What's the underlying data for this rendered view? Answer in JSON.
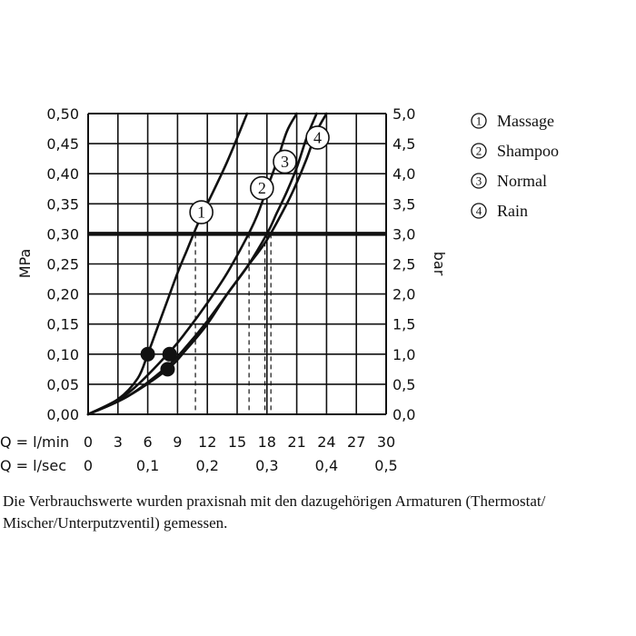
{
  "chart_data": {
    "type": "line",
    "y_left": {
      "label": "MPa",
      "range": [
        0,
        0.5
      ],
      "ticks": [
        "0,00",
        "0,05",
        "0,10",
        "0,15",
        "0,20",
        "0,25",
        "0,30",
        "0,35",
        "0,40",
        "0,45",
        "0,50"
      ]
    },
    "y_right": {
      "label": "bar",
      "range": [
        0,
        5
      ],
      "ticks": [
        "0,0",
        "0,5",
        "1,0",
        "1,5",
        "2,0",
        "2,5",
        "3,0",
        "3,5",
        "4,0",
        "4,5",
        "5,0"
      ]
    },
    "x_lmin": {
      "label": "Q = l/min",
      "range": [
        0,
        30
      ],
      "ticks": [
        0,
        3,
        6,
        9,
        12,
        15,
        18,
        21,
        24,
        27,
        30
      ]
    },
    "x_lsec": {
      "label": "Q = l/sec",
      "ticks": [
        "0",
        "0,1",
        "0,2",
        "0,3",
        "0,4",
        "0,5"
      ]
    },
    "grid": true,
    "reference_pressure": 0.3,
    "legend_position": "right",
    "series": [
      {
        "id": "1",
        "name": "Massage",
        "flow_at_ref": 10.8,
        "points": [
          [
            0,
            0
          ],
          [
            3,
            0.025
          ],
          [
            5,
            0.06
          ],
          [
            6,
            0.1
          ],
          [
            7,
            0.145
          ],
          [
            8,
            0.19
          ],
          [
            9,
            0.235
          ],
          [
            10,
            0.275
          ],
          [
            11,
            0.315
          ],
          [
            12,
            0.35
          ],
          [
            14,
            0.42
          ],
          [
            16,
            0.5
          ]
        ]
      },
      {
        "id": "2",
        "name": "Shampoo",
        "flow_at_ref": 16.2,
        "points": [
          [
            0,
            0
          ],
          [
            4,
            0.035
          ],
          [
            8,
            0.1
          ],
          [
            10,
            0.14
          ],
          [
            12,
            0.185
          ],
          [
            14,
            0.235
          ],
          [
            16,
            0.295
          ],
          [
            17,
            0.33
          ],
          [
            18,
            0.375
          ],
          [
            19,
            0.42
          ],
          [
            20,
            0.47
          ],
          [
            21,
            0.5
          ]
        ]
      },
      {
        "id": "3",
        "name": "Normal",
        "flow_at_ref": 17.8,
        "points": [
          [
            0,
            0
          ],
          [
            4,
            0.03
          ],
          [
            8,
            0.075
          ],
          [
            10,
            0.11
          ],
          [
            12,
            0.15
          ],
          [
            14,
            0.2
          ],
          [
            16,
            0.245
          ],
          [
            18,
            0.3
          ],
          [
            19,
            0.335
          ],
          [
            20,
            0.37
          ],
          [
            21,
            0.41
          ],
          [
            22,
            0.46
          ],
          [
            23,
            0.5
          ]
        ]
      },
      {
        "id": "4",
        "name": "Rain",
        "flow_at_ref": 18.4,
        "points": [
          [
            0,
            0
          ],
          [
            4,
            0.03
          ],
          [
            8,
            0.08
          ],
          [
            10,
            0.115
          ],
          [
            12,
            0.155
          ],
          [
            14,
            0.2
          ],
          [
            16,
            0.245
          ],
          [
            18,
            0.29
          ],
          [
            20,
            0.35
          ],
          [
            21,
            0.385
          ],
          [
            22,
            0.425
          ],
          [
            23,
            0.47
          ],
          [
            24,
            0.5
          ]
        ]
      }
    ],
    "markers": [
      {
        "x": 6,
        "y": 0.1
      },
      {
        "x": 8.2,
        "y": 0.1
      },
      {
        "x": 8,
        "y": 0.075
      }
    ]
  },
  "legend": [
    {
      "num": "1",
      "label": "Massage"
    },
    {
      "num": "2",
      "label": "Shampoo"
    },
    {
      "num": "3",
      "label": "Normal"
    },
    {
      "num": "4",
      "label": "Rain"
    }
  ],
  "note": "Die Verbrauchswerte wurden praxisnah mit den dazugehörigen Armaturen (Thermostat/ Mischer/Unterputzventil) gemessen."
}
